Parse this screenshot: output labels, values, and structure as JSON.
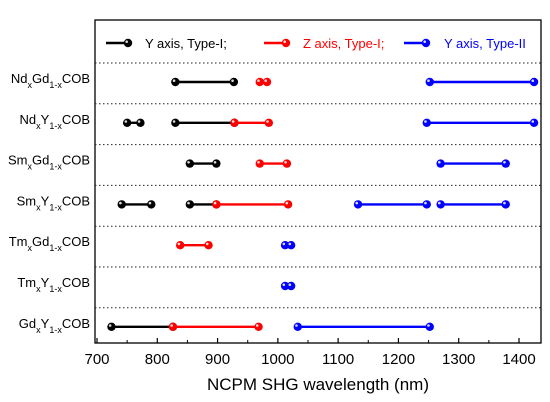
{
  "chart_data": {
    "type": "scatter",
    "xlabel": "NCPM SHG wavelength (nm)",
    "xlim": [
      700,
      1450
    ],
    "xticks": [
      700,
      800,
      900,
      1000,
      1100,
      1200,
      1300,
      1400
    ],
    "categories": [
      {
        "base": "Nd",
        "sub1": "x",
        "mid": "Gd",
        "sub2": "1-x",
        "tail": "COB"
      },
      {
        "base": "Nd",
        "sub1": "x",
        "mid": "Y",
        "sub2": "1-x",
        "tail": "COB"
      },
      {
        "base": "Sm",
        "sub1": "x",
        "mid": "Gd",
        "sub2": "1-x",
        "tail": "COB"
      },
      {
        "base": "Sm",
        "sub1": "x",
        "mid": "Y",
        "sub2": "1-x",
        "tail": "COB"
      },
      {
        "base": "Tm",
        "sub1": "x",
        "mid": "Gd",
        "sub2": "1-x",
        "tail": "COB"
      },
      {
        "base": "Tm",
        "sub1": "x",
        "mid": "Y",
        "sub2": "1-x",
        "tail": "COB"
      },
      {
        "base": "Gd",
        "sub1": "x",
        "mid": "Y",
        "sub2": "1-x",
        "tail": "COB"
      }
    ],
    "series": [
      {
        "name": "Y axis, Type-I;",
        "color": "#000000",
        "segments": [
          {
            "row": 0,
            "x": [
              830,
              927
            ]
          },
          {
            "row": 1,
            "x": [
              750,
              772
            ]
          },
          {
            "row": 1,
            "x": [
              830,
              928
            ]
          },
          {
            "row": 2,
            "x": [
              854,
              898
            ]
          },
          {
            "row": 3,
            "x": [
              741,
              790
            ]
          },
          {
            "row": 3,
            "x": [
              854,
              898
            ]
          },
          {
            "row": 6,
            "x": [
              724,
              826
            ]
          }
        ]
      },
      {
        "name": "Z axis, Type-I;",
        "color": "#ff0000",
        "segments": [
          {
            "row": 0,
            "x": [
              970,
              982
            ]
          },
          {
            "row": 1,
            "x": [
              928,
              985
            ]
          },
          {
            "row": 2,
            "x": [
              970,
              1015
            ]
          },
          {
            "row": 3,
            "x": [
              898,
              1017
            ]
          },
          {
            "row": 4,
            "x": [
              838,
              885
            ]
          },
          {
            "row": 6,
            "x": [
              826,
              968
            ]
          }
        ]
      },
      {
        "name": "Y axis, Type-II",
        "color": "#0000ff",
        "segments": [
          {
            "row": 0,
            "x": [
              1252,
              1425
            ]
          },
          {
            "row": 1,
            "x": [
              1247,
              1425
            ]
          },
          {
            "row": 2,
            "x": [
              1270,
              1378
            ]
          },
          {
            "row": 3,
            "x": [
              1133,
              1247
            ]
          },
          {
            "row": 3,
            "x": [
              1270,
              1378
            ]
          },
          {
            "row": 4,
            "x": [
              1012,
              1022
            ]
          },
          {
            "row": 5,
            "x": [
              1012,
              1022
            ]
          },
          {
            "row": 6,
            "x": [
              1033,
              1252
            ]
          }
        ]
      }
    ],
    "legend_position": "top",
    "grid": false
  }
}
